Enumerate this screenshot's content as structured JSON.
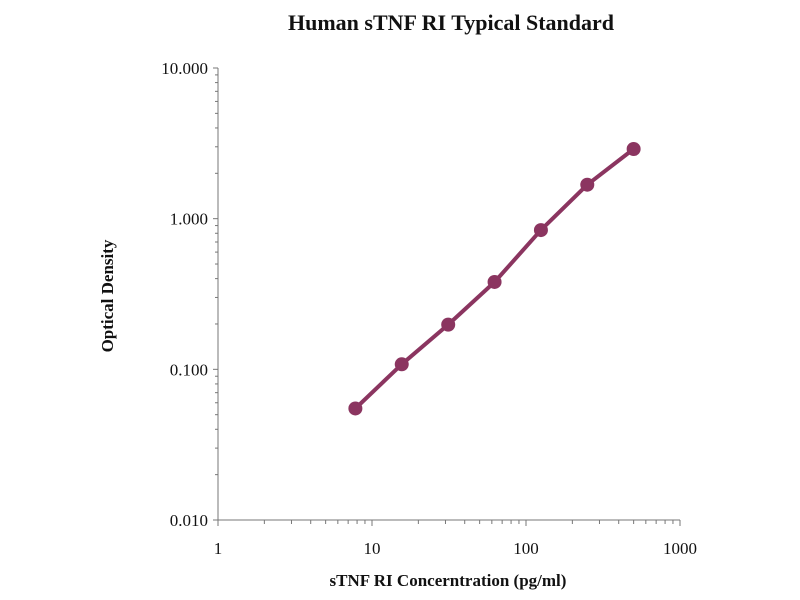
{
  "chart_data": {
    "type": "scatter",
    "title": "Human sTNF RI Typical Standard",
    "xlabel": "sTNF RI Concerntration (pg/ml)",
    "ylabel": "Optical Density",
    "x_scale": "log",
    "y_scale": "log",
    "xlim": [
      1,
      1000
    ],
    "ylim": [
      0.01,
      10
    ],
    "x_tick_values": [
      1,
      10,
      100,
      1000
    ],
    "x_tick_labels": [
      "1",
      "10",
      "100",
      "1000"
    ],
    "y_tick_values": [
      0.01,
      0.1,
      1,
      10
    ],
    "y_tick_labels": [
      "0.010",
      "0.100",
      "1.000",
      "10.000"
    ],
    "grid": false,
    "legend": false,
    "series": [
      {
        "x": [
          7.8,
          15.6,
          31.25,
          62.5,
          125,
          250,
          500
        ],
        "y": [
          0.055,
          0.108,
          0.198,
          0.38,
          0.84,
          1.68,
          2.9
        ],
        "color": "#8b3560",
        "marker": "circle",
        "line": "straight"
      }
    ]
  }
}
